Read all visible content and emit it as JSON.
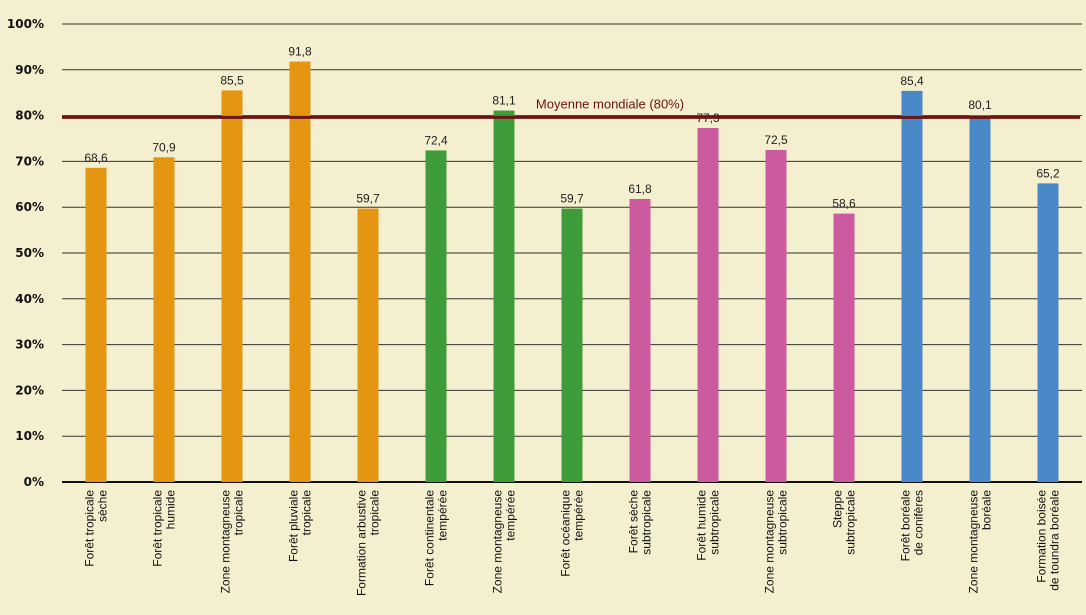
{
  "chart_data": {
    "type": "bar",
    "ylim": [
      0,
      100
    ],
    "yticks": [
      "0%",
      "10%",
      "20%",
      "30%",
      "40%",
      "50%",
      "60%",
      "70%",
      "80%",
      "90%",
      "100%"
    ],
    "grid": true,
    "categories": [
      [
        "Forêt tropicale",
        "sèche"
      ],
      [
        "Forêt tropicale",
        "humide"
      ],
      [
        "Zone montagneuse",
        "tropicale"
      ],
      [
        "Forêt pluviale",
        "tropicale"
      ],
      [
        "Formation arbustive",
        "tropicale"
      ],
      [
        "Forêt continentale",
        "tempérée"
      ],
      [
        "Zone montagneuse",
        "tempérée"
      ],
      [
        "Forêt océanique",
        "tempérée"
      ],
      [
        "Forêt sèche",
        "subtropicale"
      ],
      [
        "Forêt humide",
        "subtropicale"
      ],
      [
        "Zone montagneuse",
        "subtropicale"
      ],
      [
        "Steppe",
        "subtropicale"
      ],
      [
        "Forêt boréale",
        "de conifères"
      ],
      [
        "Zone montagneuse",
        "boréale"
      ],
      [
        "Formation boisée",
        "de toundra boréale"
      ]
    ],
    "values": [
      68.6,
      70.9,
      85.5,
      91.8,
      59.7,
      72.4,
      81.1,
      59.7,
      61.8,
      77.3,
      72.5,
      58.6,
      85.4,
      80.1,
      65.2
    ],
    "value_labels": [
      "68,6",
      "70,9",
      "85,5",
      "91,8",
      "59,7",
      "72,4",
      "81,1",
      "59,7",
      "61,8",
      "77,3",
      "72,5",
      "58,6",
      "85,4",
      "80,1",
      "65,2"
    ],
    "bar_colors": [
      "#e49613",
      "#e49613",
      "#e49613",
      "#e49613",
      "#e49613",
      "#3f9c3a",
      "#3f9c3a",
      "#3f9c3a",
      "#cc5a9e",
      "#cc5a9e",
      "#cc5a9e",
      "#cc5a9e",
      "#4a89c8",
      "#4a89c8",
      "#4a89c8"
    ],
    "reference_line": {
      "value": 79.6,
      "label": "Moyenne mondiale (80%)",
      "color": "#6b1414"
    }
  }
}
